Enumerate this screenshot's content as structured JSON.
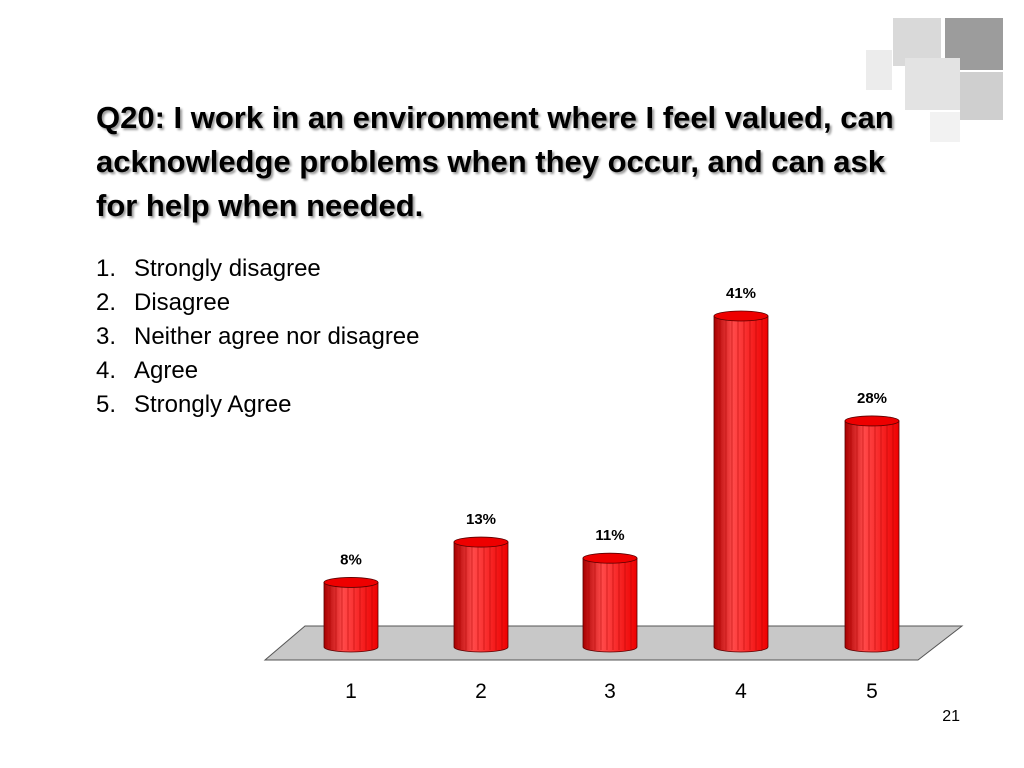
{
  "slide": {
    "title": "Q20: I work in an environment where I feel valued, can acknowledge problems when they occur, and can ask for help when needed.",
    "options": [
      {
        "num": "1.",
        "label": "Strongly disagree"
      },
      {
        "num": "2.",
        "label": "Disagree"
      },
      {
        "num": "3.",
        "label": "Neither agree nor disagree"
      },
      {
        "num": "4.",
        "label": "Agree"
      },
      {
        "num": "5.",
        "label": "Strongly Agree"
      }
    ],
    "slide_number": "21"
  },
  "colors": {
    "bar": "#ee0000",
    "bar_dark": "#a80000",
    "bar_light": "#ff4a4a",
    "floor": "#c8c8c8",
    "deco_gray": "#d4d4d4",
    "deco_dark": "#9a9a9a"
  },
  "chart_data": {
    "type": "bar",
    "style": "3d-cylinder",
    "categories": [
      "1",
      "2",
      "3",
      "4",
      "5"
    ],
    "values": [
      8,
      13,
      11,
      41,
      28
    ],
    "value_labels": [
      "8%",
      "13%",
      "11%",
      "41%",
      "28%"
    ],
    "unit": "%",
    "ylim": [
      0,
      41
    ],
    "grid": false,
    "legend": "none"
  }
}
